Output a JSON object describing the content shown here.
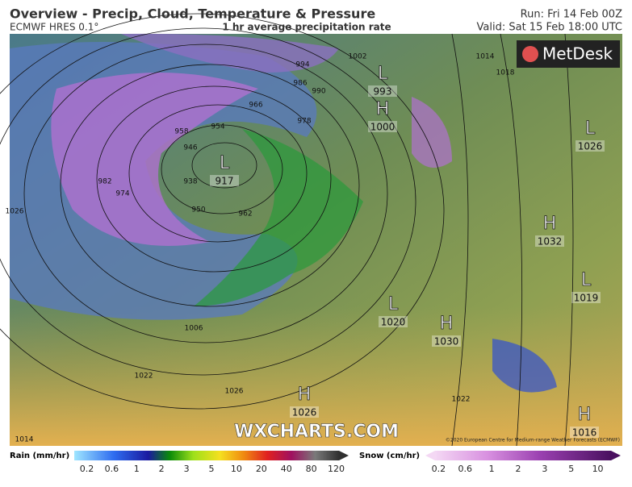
{
  "header": {
    "title": "Overview - Precip, Cloud, Temperature & Pressure",
    "model": "ECMWF HRES 0.1°",
    "subtitle": "1 hr average precipitation rate",
    "run": "Run: Fri 14 Feb 00Z",
    "valid": "Valid: Sat 15 Feb 18:00 UTC"
  },
  "logo": "MetDesk",
  "watermark": "WXCHARTS.COM",
  "copyright": "©2020 European Centre for Medium-range Weather Forecasts (ECMWF)",
  "pressure_systems": [
    {
      "type": "L",
      "value": 993
    },
    {
      "type": "H",
      "value": 1000
    },
    {
      "type": "L",
      "value": 1026
    },
    {
      "type": "L",
      "value": 917
    },
    {
      "type": "H",
      "value": 1032
    },
    {
      "type": "L",
      "value": 1019
    },
    {
      "type": "L",
      "value": 1020
    },
    {
      "type": "H",
      "value": 1030
    },
    {
      "type": "H",
      "value": 1026
    },
    {
      "type": "H",
      "value": 1016
    }
  ],
  "isobar_labels": [
    994,
    990,
    986,
    966,
    978,
    958,
    954,
    946,
    938,
    950,
    962,
    982,
    974,
    1026,
    1006,
    1022,
    1026,
    1002,
    1014,
    1018,
    1022,
    1014
  ],
  "legend": {
    "rain": {
      "label": "Rain (mm/hr)",
      "ticks": [
        0.2,
        0.6,
        1,
        2,
        3,
        5,
        10,
        20,
        40,
        80,
        120
      ]
    },
    "snow": {
      "label": "Snow (cm/hr)",
      "ticks": [
        0.2,
        0.6,
        1,
        2,
        3,
        5,
        10
      ]
    }
  }
}
